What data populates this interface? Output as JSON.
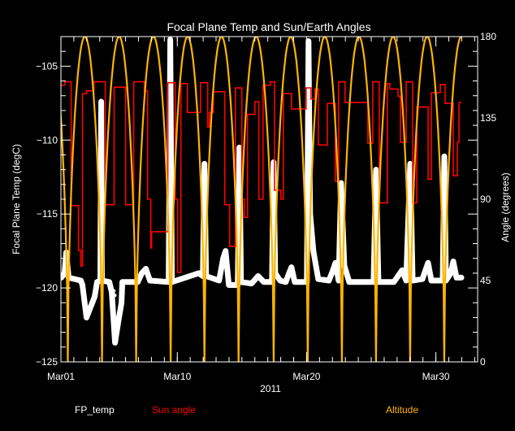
{
  "chart_data": {
    "type": "line",
    "title": "Focal Plane Temp and Sun/Earth Angles",
    "xlabel": "2011",
    "ylabel": "Focal Plane Temp (degC)",
    "y2label": "Angle (degrees)",
    "xlim": [
      "2011-03-01T00:00",
      "2011-04-02T05:30"
    ],
    "ylim": [
      -125,
      -103
    ],
    "y2lim": [
      0,
      180
    ],
    "x_ticks": [
      {
        "date": "2011-03-01T00:00",
        "label": "Mar01"
      },
      {
        "date": "2011-03-10T00:00",
        "label": "Mar10"
      },
      {
        "date": "2011-03-20T00:00",
        "label": "Mar20"
      },
      {
        "date": "2011-03-30T00:00",
        "label": "Mar30"
      }
    ],
    "y_ticks": [
      {
        "value": -125,
        "label": "−125"
      },
      {
        "value": -120,
        "label": "−120"
      },
      {
        "value": -115,
        "label": "−115"
      },
      {
        "value": -110,
        "label": "−110"
      },
      {
        "value": -105,
        "label": "−105"
      }
    ],
    "y2_ticks": [
      {
        "value": 0,
        "label": "0"
      },
      {
        "value": 45,
        "label": "45"
      },
      {
        "value": 90,
        "label": "90"
      },
      {
        "value": 135,
        "label": "135"
      },
      {
        "value": 180,
        "label": "180"
      }
    ],
    "grid": false,
    "legend_placement": "bottom",
    "series": [
      {
        "name": "FP_temp",
        "axis": "left",
        "color": "#ffffff",
        "points": [
          [
            "2011-03-01T00:45",
            -119.3
          ],
          [
            "2011-03-01T06:48",
            -119.0
          ],
          [
            "2011-03-01T09:49",
            -117.6
          ],
          [
            "2011-03-01T14:20",
            -119.3
          ],
          [
            "2011-03-02T13:00",
            -119.5
          ],
          [
            "2011-03-02T16:00",
            -119.8
          ],
          [
            "2011-03-02T23:33",
            -122.0
          ],
          [
            "2011-03-03T07:06",
            -121.3
          ],
          [
            "2011-03-03T14:38",
            -120.6
          ],
          [
            "2011-03-03T19:10",
            -119.6
          ],
          [
            "2011-03-04T01:12",
            -119.5
          ],
          [
            "2011-03-04T02:43",
            -107.4
          ],
          [
            "2011-03-04T04:13",
            -119.5
          ],
          [
            "2011-03-04T17:48",
            -119.6
          ],
          [
            "2011-03-04T22:20",
            -120.3
          ],
          [
            "2011-03-05T04:22",
            -123.7
          ],
          [
            "2011-03-05T10:25",
            -122.3
          ],
          [
            "2011-03-05T16:27",
            -121.0
          ],
          [
            "2011-03-05T17:58",
            -119.6
          ],
          [
            "2011-03-06T22:38",
            -119.6
          ],
          [
            "2011-03-07T06:11",
            -119.0
          ],
          [
            "2011-03-07T13:44",
            -118.7
          ],
          [
            "2011-03-07T21:17",
            -119.5
          ],
          [
            "2011-03-09T08:00",
            -119.6
          ],
          [
            "2011-03-09T11:01",
            -103.2
          ],
          [
            "2011-03-09T14:02",
            -119.6
          ],
          [
            "2011-03-11T15:50",
            -119.0
          ],
          [
            "2011-03-11T23:24",
            -119.2
          ],
          [
            "2011-03-12T02:25",
            -111.6
          ],
          [
            "2011-03-12T05:26",
            -119.2
          ],
          [
            "2011-03-13T05:35",
            -119.5
          ],
          [
            "2011-03-13T13:08",
            -118.0
          ],
          [
            "2011-03-13T17:40",
            -117.5
          ],
          [
            "2011-03-13T23:41",
            -119.8
          ],
          [
            "2011-03-14T16:18",
            -119.8
          ],
          [
            "2011-03-14T19:19",
            -110.5
          ],
          [
            "2011-03-14T22:21",
            -119.6
          ],
          [
            "2011-03-15T17:57",
            -119.7
          ],
          [
            "2011-03-16T06:03",
            -119.2
          ],
          [
            "2011-03-16T16:36",
            -119.6
          ],
          [
            "2011-03-17T07:42",
            -119.6
          ],
          [
            "2011-03-17T10:43",
            -111.5
          ],
          [
            "2011-03-17T13:44",
            -119.0
          ],
          [
            "2011-03-17T22:48",
            -119.5
          ],
          [
            "2011-03-18T09:21",
            -119.6
          ],
          [
            "2011-03-18T15:24",
            -119.0
          ],
          [
            "2011-03-18T19:55",
            -118.6
          ],
          [
            "2011-03-19T01:58",
            -119.6
          ],
          [
            "2011-03-20T00:36",
            -119.6
          ],
          [
            "2011-03-20T03:37",
            -103.3
          ],
          [
            "2011-03-20T06:38",
            -115.0
          ],
          [
            "2011-03-20T12:40",
            -117.5
          ],
          [
            "2011-03-20T21:44",
            -119.4
          ],
          [
            "2011-03-21T17:21",
            -119.5
          ],
          [
            "2011-03-22T00:55",
            -118.8
          ],
          [
            "2011-03-22T05:26",
            -118.3
          ],
          [
            "2011-03-22T11:28",
            -119.5
          ],
          [
            "2011-03-22T16:00",
            -112.9
          ],
          [
            "2011-03-22T22:02",
            -118.5
          ],
          [
            "2011-03-23T07:06",
            -119.6
          ],
          [
            "2011-03-25T04:22",
            -119.6
          ],
          [
            "2011-03-25T08:54",
            -112.0
          ],
          [
            "2011-03-25T13:26",
            -119.6
          ],
          [
            "2011-03-26T18:07",
            -119.6
          ],
          [
            "2011-03-27T01:40",
            -119.2
          ],
          [
            "2011-03-27T09:13",
            -118.8
          ],
          [
            "2011-03-27T16:45",
            -119.5
          ],
          [
            "2011-03-28T00:18",
            -111.6
          ],
          [
            "2011-03-28T04:50",
            -119.5
          ],
          [
            "2011-03-28T22:57",
            -119.4
          ],
          [
            "2011-03-29T09:30",
            -118.3
          ],
          [
            "2011-03-29T15:33",
            -119.5
          ],
          [
            "2011-03-30T12:40",
            -119.5
          ],
          [
            "2011-03-30T15:41",
            -111.1
          ],
          [
            "2011-03-30T18:43",
            -119.5
          ],
          [
            "2011-03-31T03:46",
            -119.0
          ],
          [
            "2011-03-31T08:18",
            -118.2
          ],
          [
            "2011-03-31T14:20",
            -119.3
          ],
          [
            "2011-03-31T23:24",
            -119.3
          ]
        ],
        "outliers": [
          [
            "2011-03-05T02:00",
            -120.2
          ],
          [
            "2011-03-05T04:00",
            -120.5
          ],
          [
            "2011-03-05T19:00",
            -120.4
          ]
        ]
      },
      {
        "name": "Sun angle",
        "axis": "right",
        "color": "#ff0000",
        "style": "step",
        "points": [
          [
            "2011-03-01T00:00",
            153
          ],
          [
            "2011-03-01T06:45",
            155
          ],
          [
            "2011-03-01T19:00",
            86.5
          ],
          [
            "2011-03-02T08:30",
            61.6
          ],
          [
            "2011-03-02T13:00",
            53
          ],
          [
            "2011-03-02T16:00",
            148.5
          ],
          [
            "2011-03-02T23:30",
            150
          ],
          [
            "2011-03-03T13:10",
            155
          ],
          [
            "2011-03-04T10:20",
            87
          ],
          [
            "2011-03-05T02:50",
            152
          ],
          [
            "2011-03-06T00:00",
            87
          ],
          [
            "2011-03-06T15:10",
            155
          ],
          [
            "2011-03-07T10:50",
            150
          ],
          [
            "2011-03-07T16:50",
            90
          ],
          [
            "2011-03-07T22:50",
            63
          ],
          [
            "2011-03-08T00:20",
            72
          ],
          [
            "2011-03-09T06:30",
            154.5
          ],
          [
            "2011-03-09T20:10",
            90
          ],
          [
            "2011-03-10T00:40",
            49.5
          ],
          [
            "2011-03-10T06:40",
            154
          ],
          [
            "2011-03-10T18:50",
            138
          ],
          [
            "2011-03-11T19:00",
            154.5
          ],
          [
            "2011-03-12T08:30",
            130
          ],
          [
            "2011-03-12T11:30",
            138
          ],
          [
            "2011-03-12T19:00",
            149.5
          ],
          [
            "2011-03-13T16:10",
            87
          ],
          [
            "2011-03-14T01:10",
            64
          ],
          [
            "2011-03-14T11:50",
            151.6
          ],
          [
            "2011-03-14T23:50",
            90
          ],
          [
            "2011-03-15T04:20",
            80
          ],
          [
            "2011-03-15T10:20",
            137
          ],
          [
            "2011-03-16T00:00",
            144
          ],
          [
            "2011-03-16T07:30",
            90
          ],
          [
            "2011-03-16T15:10",
            153
          ],
          [
            "2011-03-17T04:40",
            155
          ],
          [
            "2011-03-17T12:20",
            95
          ],
          [
            "2011-03-18T00:20",
            90
          ],
          [
            "2011-03-18T04:50",
            148.5
          ],
          [
            "2011-03-18T20:00",
            140
          ],
          [
            "2011-03-19T23:00",
            151.6
          ],
          [
            "2011-03-20T08:10",
            145.5
          ],
          [
            "2011-03-20T15:40",
            151
          ],
          [
            "2011-03-20T21:50",
            120
          ],
          [
            "2011-03-21T14:30",
            143
          ],
          [
            "2011-03-22T05:30",
            100
          ],
          [
            "2011-03-22T11:30",
            155
          ],
          [
            "2011-03-22T23:30",
            143.5
          ],
          [
            "2011-03-24T17:50",
            121
          ],
          [
            "2011-03-25T02:50",
            155
          ],
          [
            "2011-03-25T14:50",
            88
          ],
          [
            "2011-03-26T06:00",
            154
          ],
          [
            "2011-03-26T10:30",
            151
          ],
          [
            "2011-03-27T01:40",
            147
          ],
          [
            "2011-03-27T06:10",
            121.5
          ],
          [
            "2011-03-27T16:50",
            155
          ],
          [
            "2011-03-28T04:50",
            88
          ],
          [
            "2011-03-28T12:30",
            141
          ],
          [
            "2011-03-29T09:40",
            101
          ],
          [
            "2011-03-29T15:40",
            149
          ],
          [
            "2011-03-30T08:10",
            153.5
          ],
          [
            "2011-03-30T17:10",
            143
          ],
          [
            "2011-03-31T08:20",
            103
          ],
          [
            "2011-03-31T15:50",
            121.5
          ],
          [
            "2011-03-31T19:00",
            143.5
          ],
          [
            "2011-03-31T23:20",
            143.5
          ]
        ]
      },
      {
        "name": "Altitude",
        "axis": "right",
        "color": "#ffb400",
        "points": [
          [
            "2011-02-28T05:00",
            180
          ],
          [
            "2011-03-01T12:45",
            0
          ],
          [
            "2011-03-02T20:30",
            180
          ],
          [
            "2011-03-04T04:20",
            0
          ],
          [
            "2011-03-05T12:00",
            180
          ],
          [
            "2011-03-06T19:40",
            0
          ],
          [
            "2011-03-08T03:45",
            180
          ],
          [
            "2011-03-09T11:45",
            0
          ],
          [
            "2011-03-10T19:10",
            180
          ],
          [
            "2011-03-12T02:25",
            0
          ],
          [
            "2011-03-13T10:05",
            180
          ],
          [
            "2011-03-14T17:45",
            0
          ],
          [
            "2011-03-16T02:25",
            180
          ],
          [
            "2011-03-17T10:50",
            0
          ],
          [
            "2011-03-18T18:30",
            180
          ],
          [
            "2011-03-20T02:10",
            0
          ],
          [
            "2011-03-21T09:50",
            180
          ],
          [
            "2011-03-22T17:30",
            0
          ],
          [
            "2011-03-24T01:10",
            180
          ],
          [
            "2011-03-25T08:50",
            0
          ],
          [
            "2011-03-26T16:35",
            180
          ],
          [
            "2011-03-28T00:15",
            0
          ],
          [
            "2011-03-29T07:55",
            180
          ],
          [
            "2011-03-30T15:35",
            0
          ],
          [
            "2011-03-31T23:20",
            180
          ]
        ]
      }
    ]
  }
}
